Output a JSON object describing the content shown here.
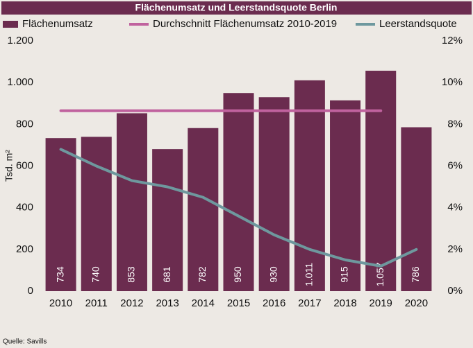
{
  "chart_data": {
    "type": "bar",
    "title": "Flächenumsatz und Leerstandsquote Berlin",
    "y_label": "Tsd. m²",
    "source": "Quelle: Savills",
    "categories": [
      "2010",
      "2011",
      "2012",
      "2013",
      "2014",
      "2015",
      "2016",
      "2017",
      "2018",
      "2019",
      "2020"
    ],
    "series": [
      {
        "name": "Flächenumsatz",
        "type": "bar",
        "color": "#6b2c4f",
        "values": [
          734,
          740,
          853,
          681,
          782,
          950,
          930,
          1011,
          915,
          1057,
          786
        ],
        "value_labels": [
          "734",
          "740",
          "853",
          "681",
          "782",
          "950",
          "930",
          "1.011",
          "915",
          "1.057",
          "786"
        ]
      },
      {
        "name": "Durchschnitt Flächenumsatz 2010-2019",
        "type": "line",
        "color": "#c0629e",
        "values": [
          865,
          865,
          865,
          865,
          865,
          865,
          865,
          865,
          865,
          865,
          null
        ]
      },
      {
        "name": "Leerstandsquote",
        "type": "line",
        "axis": "y2",
        "color": "#6e989e",
        "values": [
          6.8,
          6.0,
          5.3,
          5.0,
          4.5,
          3.6,
          2.7,
          2.0,
          1.5,
          1.2,
          2.0
        ]
      }
    ],
    "ylim": [
      0,
      1200
    ],
    "yticks": [
      0,
      200,
      400,
      600,
      800,
      {
        "value": 1000,
        "label": "1.000"
      },
      {
        "value": 1200,
        "label": "1.200"
      }
    ],
    "y2lim": [
      0,
      12
    ],
    "y2ticks": [
      {
        "value": 0,
        "label": "0%"
      },
      {
        "value": 2,
        "label": "2%"
      },
      {
        "value": 4,
        "label": "4%"
      },
      {
        "value": 6,
        "label": "6%"
      },
      {
        "value": 8,
        "label": "8%"
      },
      {
        "value": 10,
        "label": "10%"
      },
      {
        "value": 12,
        "label": "12%"
      }
    ],
    "legend": "top",
    "grid": false
  }
}
